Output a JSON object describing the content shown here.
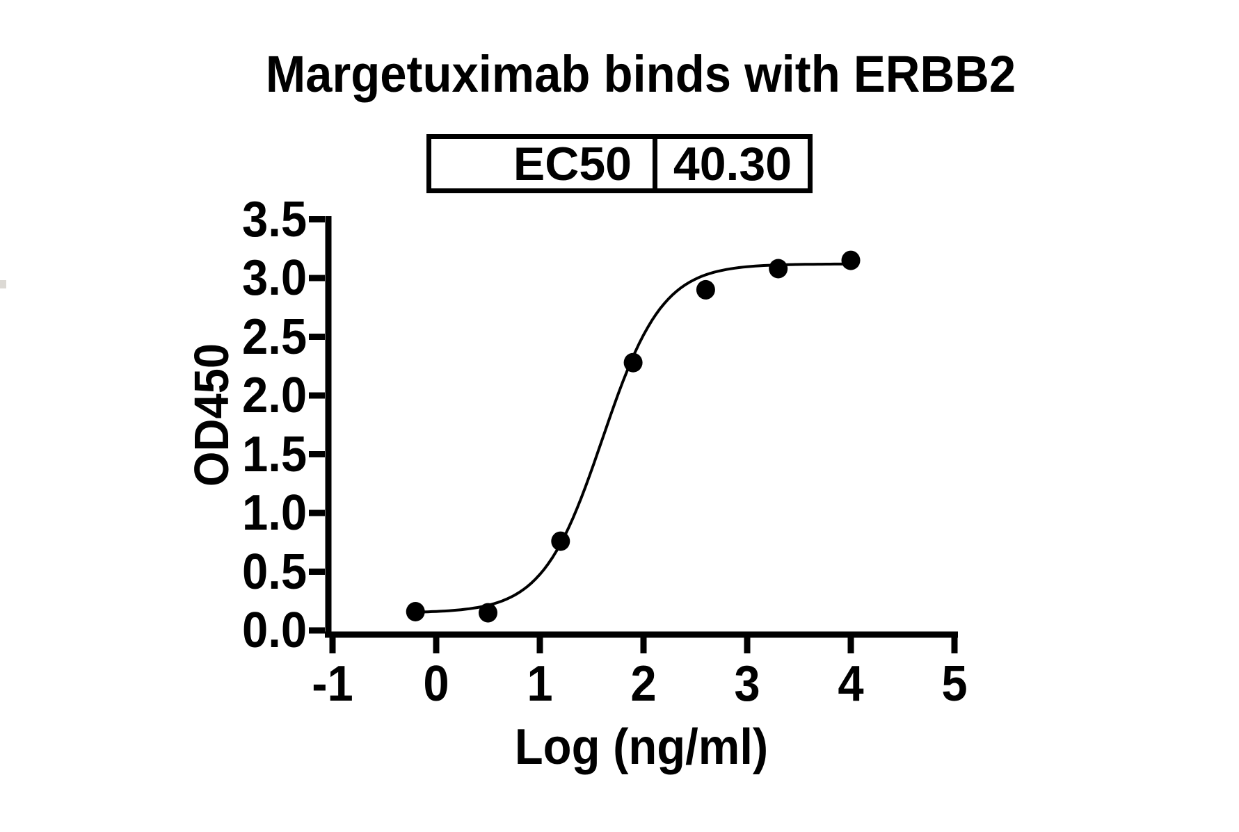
{
  "figure": {
    "title": "Margetuximab binds with ERBB2",
    "ec50_table": {
      "label": "EC50",
      "value": "40.30"
    },
    "background_color": "#ffffff",
    "ink_color": "#000000"
  },
  "chart_data": {
    "type": "scatter",
    "title": "Margetuximab binds with ERBB2",
    "xlabel": "Log (ng/ml)",
    "ylabel": "OD450",
    "xlim": [
      -1,
      5
    ],
    "ylim": [
      0.0,
      3.5
    ],
    "x_ticks": [
      -1,
      0,
      1,
      2,
      3,
      4,
      5
    ],
    "y_ticks": [
      0.0,
      0.5,
      1.0,
      1.5,
      2.0,
      2.5,
      3.0,
      3.5
    ],
    "grid": false,
    "legend_position": "none",
    "marker_color": "#000000",
    "curve_color": "#000000",
    "points": [
      {
        "x": -0.2,
        "y": 0.16
      },
      {
        "x": 0.5,
        "y": 0.15
      },
      {
        "x": 1.2,
        "y": 0.76
      },
      {
        "x": 1.9,
        "y": 2.28
      },
      {
        "x": 2.6,
        "y": 2.9
      },
      {
        "x": 3.3,
        "y": 3.08
      },
      {
        "x": 4.0,
        "y": 3.15
      }
    ],
    "fit_curve": {
      "model": "4PL-sigmoid",
      "bottom": 0.15,
      "top": 3.12,
      "log_ec50": 1.6053,
      "hill": 1.5,
      "x_start": -0.2,
      "x_end": 4.0
    },
    "ec50": 40.3
  }
}
